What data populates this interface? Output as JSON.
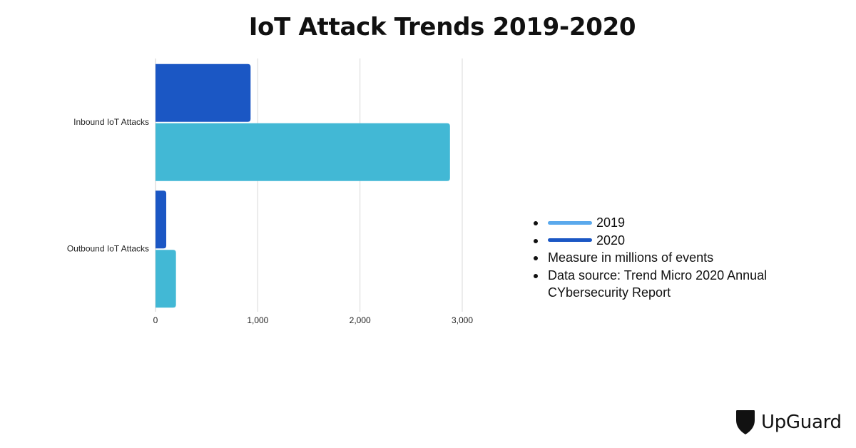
{
  "chart_data": {
    "type": "bar",
    "orientation": "horizontal",
    "title": "IoT Attack Trends 2019-2020",
    "categories": [
      "Inbound IoT Attacks",
      "Outbound IoT Attacks"
    ],
    "series": [
      {
        "name": "2020",
        "values": [
          930,
          105
        ],
        "color": "#1b57c4"
      },
      {
        "name": "2019",
        "values": [
          2880,
          200
        ],
        "color": "#42b8d5"
      }
    ],
    "xlim": [
      0,
      3000
    ],
    "xticks": [
      0,
      1000,
      2000,
      3000
    ],
    "xtick_labels": [
      "0",
      "1,000",
      "2,000",
      "3,000"
    ],
    "grid": "vertical",
    "legend_position": "right"
  },
  "legend": {
    "items": [
      {
        "label": "2019",
        "swatch_color": "#5aa9ec"
      },
      {
        "label": "2020",
        "swatch_color": "#1b57c4"
      },
      {
        "label": "Measure in millions of events"
      },
      {
        "label": "Data source: Trend Micro 2020 Annual CYbersecurity Report"
      }
    ]
  },
  "logo": {
    "text": "UpGuard",
    "icon": "upguard-shield-icon"
  },
  "colors": {
    "text": "#111111",
    "grid": "#d9d9d9"
  }
}
